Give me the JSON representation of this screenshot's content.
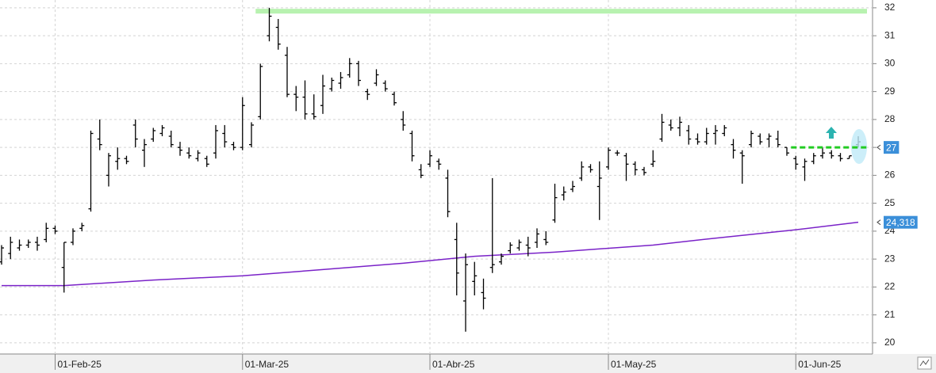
{
  "chart_data": {
    "type": "ohlc",
    "categories": [
      null,
      null,
      null,
      null,
      null,
      null,
      "01-Feb-25",
      null,
      null,
      null,
      null,
      null,
      null,
      null,
      null,
      null,
      null,
      null,
      null,
      null,
      null,
      null,
      null,
      null,
      null,
      null,
      null,
      "01-Mar-25",
      null,
      null,
      null,
      null,
      null,
      null,
      null,
      null,
      null,
      null,
      null,
      null,
      null,
      null,
      null,
      null,
      null,
      null,
      null,
      null,
      "01-Abr-25",
      null,
      null,
      null,
      null,
      null,
      null,
      null,
      null,
      null,
      null,
      null,
      null,
      null,
      null,
      null,
      null,
      null,
      null,
      null,
      "01-May-25",
      null,
      null,
      null,
      null,
      null,
      null,
      null,
      null,
      null,
      null,
      null,
      null,
      null,
      null,
      null,
      null,
      null,
      null,
      null,
      null,
      "01-Jun-25",
      null,
      null,
      null,
      null,
      null,
      null,
      null
    ],
    "open": [
      22.9,
      23.2,
      23.4,
      23.5,
      23.6,
      23.7,
      24.1,
      22.7,
      23.6,
      24.1,
      24.8,
      27.3,
      26.0,
      26.5,
      26.6,
      27.8,
      26.9,
      27.3,
      27.5,
      27.4,
      27.0,
      26.8,
      26.6,
      26.6,
      26.8,
      27.5,
      27.1,
      27.0,
      27.1,
      28.1,
      31.0,
      31.3,
      30.3,
      28.9,
      28.8,
      28.2,
      28.5,
      29.1,
      29.3,
      29.6,
      30.0,
      29.0,
      29.3,
      29.3,
      28.9,
      28.0,
      27.5,
      26.2,
      26.4,
      26.5,
      25.9,
      23.7,
      21.5,
      22.2,
      21.8,
      22.7,
      22.9,
      23.3,
      23.4,
      23.5,
      23.6,
      23.7,
      24.4,
      25.3,
      25.5,
      25.9,
      26.3,
      25.6,
      26.3,
      26.8,
      26.7,
      26.4,
      26.2,
      26.4,
      27.3,
      27.8,
      27.7,
      27.6,
      27.3,
      27.2,
      27.5,
      27.5,
      27.1,
      26.8,
      27.1,
      27.4,
      27.3,
      27.3,
      27.0,
      26.6,
      26.3,
      26.5,
      26.7,
      26.8,
      26.7,
      26.6,
      27.1
    ],
    "high": [
      23.5,
      23.8,
      23.7,
      23.7,
      23.8,
      24.3,
      24.2,
      23.6,
      24.1,
      24.3,
      27.6,
      28.0,
      26.8,
      27.0,
      26.7,
      28.0,
      27.3,
      27.7,
      27.8,
      27.6,
      27.2,
      27.0,
      26.9,
      26.7,
      27.8,
      27.8,
      27.2,
      28.8,
      27.9,
      30.0,
      32.0,
      31.6,
      30.6,
      29.2,
      29.4,
      28.9,
      29.6,
      29.5,
      29.7,
      30.2,
      30.1,
      29.1,
      29.8,
      29.4,
      29.0,
      28.3,
      27.6,
      26.4,
      26.9,
      26.6,
      26.2,
      24.3,
      23.2,
      22.9,
      22.3,
      25.9,
      23.2,
      23.6,
      23.7,
      23.8,
      24.1,
      24.0,
      25.7,
      25.6,
      25.8,
      26.5,
      26.4,
      26.5,
      27.0,
      26.9,
      26.8,
      26.5,
      26.3,
      26.9,
      28.2,
      28.0,
      28.1,
      27.8,
      27.5,
      27.7,
      27.8,
      27.8,
      27.3,
      26.9,
      27.6,
      27.5,
      27.5,
      27.6,
      27.0,
      26.7,
      26.6,
      26.8,
      27.0,
      26.9,
      26.8,
      26.7,
      27.4
    ],
    "low": [
      22.8,
      23.0,
      23.3,
      23.4,
      23.3,
      23.6,
      23.9,
      21.8,
      23.5,
      24.0,
      24.7,
      26.9,
      25.6,
      26.2,
      26.4,
      27.0,
      26.3,
      27.2,
      27.4,
      27.0,
      26.7,
      26.6,
      26.5,
      26.3,
      26.6,
      27.0,
      26.9,
      26.9,
      27.0,
      28.0,
      30.8,
      30.5,
      28.8,
      28.3,
      28.0,
      28.0,
      28.2,
      29.0,
      29.1,
      29.5,
      29.2,
      28.7,
      29.2,
      29.0,
      28.5,
      27.6,
      26.5,
      25.9,
      26.3,
      26.2,
      24.5,
      21.7,
      20.4,
      21.7,
      21.2,
      22.5,
      22.8,
      23.2,
      23.3,
      23.1,
      23.4,
      23.5,
      24.3,
      25.1,
      25.4,
      25.8,
      26.1,
      24.4,
      26.2,
      26.7,
      25.8,
      26.0,
      26.0,
      26.3,
      27.2,
      27.6,
      27.4,
      27.1,
      27.1,
      27.1,
      27.1,
      27.4,
      26.6,
      25.7,
      27.0,
      27.1,
      27.0,
      27.0,
      26.7,
      26.2,
      25.8,
      26.4,
      26.6,
      26.6,
      26.5,
      26.6,
      27.0
    ],
    "close": [
      23.4,
      23.6,
      23.5,
      23.6,
      23.5,
      24.1,
      24.0,
      23.6,
      24.0,
      24.2,
      27.5,
      27.1,
      26.7,
      26.6,
      26.5,
      27.3,
      27.1,
      27.6,
      27.7,
      27.1,
      26.9,
      26.7,
      26.8,
      26.4,
      27.6,
      27.2,
      27.0,
      28.5,
      27.8,
      29.9,
      31.7,
      30.7,
      28.9,
      28.8,
      28.2,
      28.1,
      29.2,
      29.4,
      29.5,
      30.0,
      29.4,
      28.9,
      29.6,
      29.1,
      28.6,
      27.8,
      26.7,
      26.0,
      26.7,
      26.4,
      24.7,
      22.5,
      22.8,
      22.4,
      21.6,
      22.8,
      23.1,
      23.5,
      23.6,
      23.4,
      23.9,
      23.6,
      25.2,
      25.4,
      25.6,
      26.3,
      26.2,
      25.9,
      26.9,
      26.8,
      26.4,
      26.2,
      26.1,
      26.5,
      27.9,
      27.7,
      27.9,
      27.3,
      27.2,
      27.5,
      27.6,
      27.7,
      26.9,
      26.7,
      27.5,
      27.2,
      27.4,
      27.1,
      26.8,
      26.4,
      26.5,
      26.7,
      26.8,
      26.7,
      26.6,
      26.7,
      27.2
    ],
    "color": "#000000",
    "moving_average": {
      "color": "#7a22c8",
      "x": [
        0,
        7,
        17,
        27,
        35,
        45,
        53,
        62,
        73,
        80,
        89,
        96
      ],
      "values": [
        22.05,
        22.05,
        22.25,
        22.4,
        22.6,
        22.85,
        23.1,
        23.25,
        23.5,
        23.75,
        24.05,
        24.32
      ]
    },
    "hlines": [
      {
        "value": 31.88,
        "color": "#b8f2b0",
        "start": 29,
        "dashed": false
      },
      {
        "value": 27.0,
        "color": "#22cc22",
        "start": 89,
        "dashed": true
      }
    ],
    "price_labels": [
      27,
      {
        "value": 24.318,
        "label": "24,318"
      }
    ],
    "price_label_color": "#3b8fd9",
    "ylim": [
      19.6,
      32.28
    ],
    "yticks": [
      20,
      21,
      22,
      23,
      24,
      25,
      26,
      27,
      28,
      29,
      30,
      31,
      32
    ],
    "grid": true
  }
}
